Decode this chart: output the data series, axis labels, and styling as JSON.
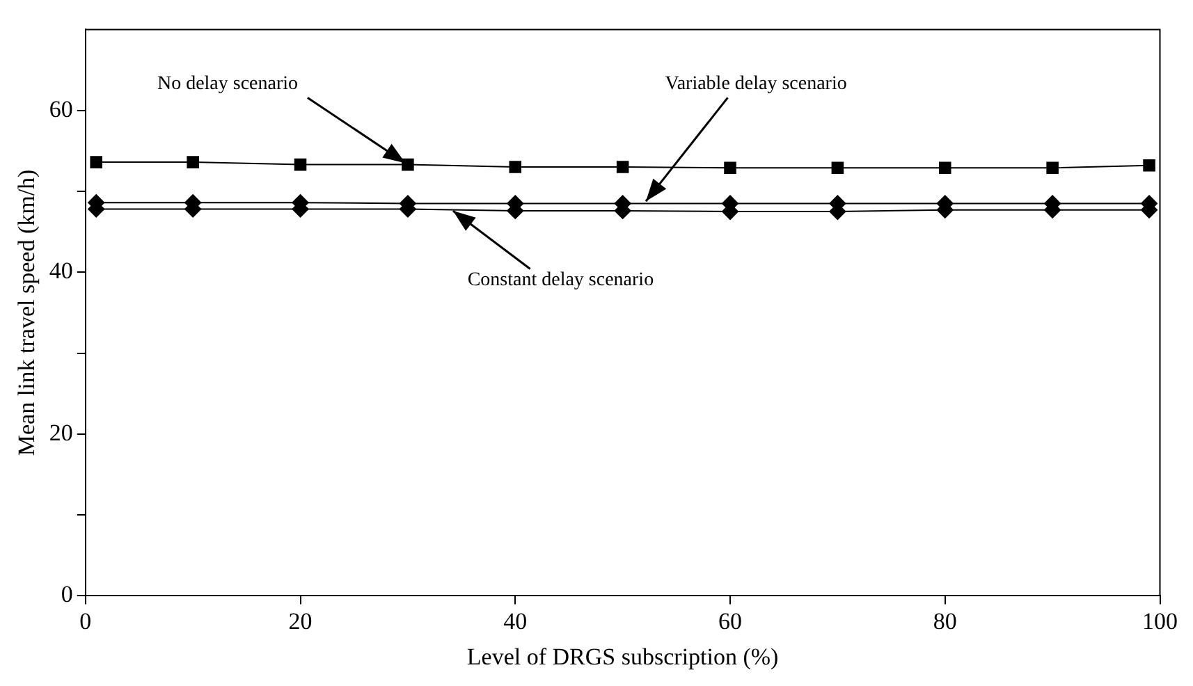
{
  "chart_data": {
    "type": "line",
    "xlabel": "Level of DRGS subscription (%)",
    "ylabel": "Mean link travel speed (km/h)",
    "x": [
      1,
      10,
      20,
      30,
      40,
      50,
      60,
      70,
      80,
      90,
      99
    ],
    "series": [
      {
        "color": "#000000",
        "marker": "square",
        "values": [
          53.6,
          53.6,
          53.3,
          53.3,
          53.0,
          53.0,
          52.9,
          52.9,
          52.9,
          52.9,
          53.2
        ]
      },
      {
        "color": "#000000",
        "marker": "diamond",
        "values": [
          48.6,
          48.6,
          48.6,
          48.5,
          48.5,
          48.5,
          48.5,
          48.5,
          48.5,
          48.5,
          48.5
        ]
      },
      {
        "color": "#000000",
        "marker": "diamond",
        "values": [
          47.8,
          47.8,
          47.8,
          47.8,
          47.6,
          47.6,
          47.5,
          47.5,
          47.7,
          47.7,
          47.7
        ]
      }
    ],
    "xlim": [
      0,
      100
    ],
    "xticks": [
      0,
      20,
      40,
      60,
      80,
      100
    ],
    "ylim": [
      0,
      70
    ],
    "yticks": [
      0,
      {
        "value": 10,
        "label": null
      },
      20,
      {
        "value": 30,
        "label": null
      },
      40,
      {
        "value": 50,
        "label": null
      },
      60
    ],
    "annotations": [
      {
        "text": "No delay scenario",
        "x": 30,
        "y": 53.3
      },
      {
        "text": "Variable delay scenario",
        "x": 52,
        "y": 48.5
      },
      {
        "text": "Constant delay scenario",
        "x": 34,
        "y": 47.8
      }
    ],
    "legend": false,
    "grid": false
  }
}
